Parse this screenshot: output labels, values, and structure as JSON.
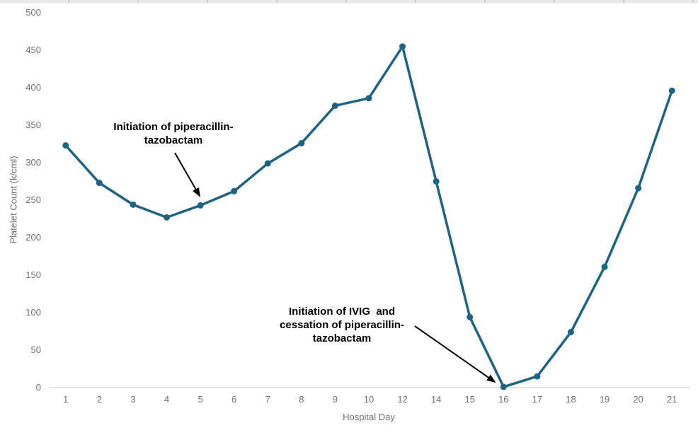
{
  "chart_data": {
    "type": "line",
    "categories": [
      "1",
      "2",
      "3",
      "4",
      "5",
      "6",
      "7",
      "8",
      "9",
      "10",
      "12",
      "14",
      "15",
      "16",
      "17",
      "18",
      "19",
      "20",
      "21"
    ],
    "values": [
      323,
      273,
      244,
      227,
      243,
      262,
      299,
      326,
      376,
      386,
      455,
      275,
      94,
      1,
      15,
      74,
      161,
      266,
      396
    ],
    "title": "",
    "xlabel": "Hospital Day",
    "ylabel": "Platelet Count (k/cml)",
    "ylim": [
      0,
      500
    ],
    "ytick_step": 50,
    "grid": false,
    "legend": "none",
    "annotations": [
      {
        "text": "Initiation of piperacillin-\ntazobactam",
        "target_day": "5"
      },
      {
        "text": "Initiation of IVIG  and\ncessation of piperacillin-\ntazobactam",
        "target_day": "16"
      }
    ],
    "colors": {
      "line": "#1C6385",
      "marker": "#1C6385",
      "axis_line": "#d9d9d9",
      "tick_text": "#6f6f6f",
      "annotation_text": "#000000",
      "arrow": "#000000",
      "background": "#ffffff"
    }
  }
}
